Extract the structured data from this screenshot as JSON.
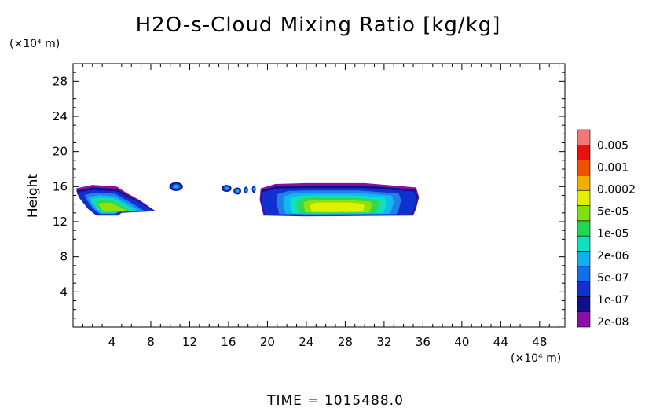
{
  "chart_data": {
    "type": "heatmap",
    "title": "H2O-s-Cloud Mixing Ratio [kg/kg]",
    "xlabel": "",
    "ylabel": "Height",
    "x_unit": "(×10⁴ m)",
    "y_unit": "(×10⁴ m)",
    "xlim": [
      0,
      50.6
    ],
    "ylim": [
      0,
      30
    ],
    "x_ticks": [
      4,
      8,
      12,
      16,
      20,
      24,
      28,
      32,
      36,
      40,
      44,
      48
    ],
    "y_ticks": [
      4,
      8,
      12,
      16,
      20,
      24,
      28
    ],
    "colorbar": {
      "labels": [
        "0.005",
        "0.001",
        "0.0002",
        "5e-05",
        "1e-05",
        "2e-06",
        "5e-07",
        "1e-07",
        "2e-08"
      ],
      "colors": [
        "#8a10a8",
        "#10108e",
        "#1030d0",
        "#1070e8",
        "#10b0f0",
        "#10e0c0",
        "#20d850",
        "#80e010",
        "#e0f000",
        "#f0b000",
        "#f05000",
        "#e81010",
        "#f07878"
      ]
    },
    "regions": [
      {
        "name": "cloud-region-1",
        "shape": [
          [
            0.3,
            15.8
          ],
          [
            2.0,
            16.2
          ],
          [
            4.5,
            16.0
          ],
          [
            5.5,
            15.3
          ],
          [
            6.8,
            14.5
          ],
          [
            8.5,
            13.2
          ],
          [
            5.0,
            13.0
          ],
          [
            4.6,
            12.7
          ],
          [
            2.4,
            12.7
          ],
          [
            1.5,
            13.5
          ],
          [
            0.6,
            15.0
          ]
        ],
        "colors_inner": [
          "#2080e8",
          "#10b8f0",
          "#10e0c0",
          "#30d850",
          "#90e010"
        ]
      },
      {
        "name": "cloud-region-2",
        "shape": [
          [
            19.3,
            15.8
          ],
          [
            20.8,
            16.3
          ],
          [
            24.0,
            16.4
          ],
          [
            30.0,
            16.4
          ],
          [
            35.3,
            15.9
          ],
          [
            35.6,
            14.8
          ],
          [
            35.3,
            13.5
          ],
          [
            35.0,
            12.7
          ],
          [
            24.0,
            12.6
          ],
          [
            19.6,
            12.7
          ],
          [
            19.2,
            14.5
          ]
        ],
        "colors_inner": [
          "#2080e8",
          "#10b8f0",
          "#10e0c0",
          "#30d850",
          "#90e010",
          "#e0f000"
        ]
      }
    ],
    "small_cells": [
      {
        "name": "cloud-fragment-1",
        "x": 10.6,
        "y": 16.0,
        "rx": 0.7,
        "ry": 0.5
      },
      {
        "name": "cloud-fragment-2",
        "x": 15.8,
        "y": 15.8,
        "rx": 0.5,
        "ry": 0.4
      },
      {
        "name": "cloud-fragment-3",
        "x": 16.9,
        "y": 15.5,
        "rx": 0.4,
        "ry": 0.4
      },
      {
        "name": "cloud-fragment-4",
        "x": 17.8,
        "y": 15.6,
        "rx": 0.2,
        "ry": 0.4
      },
      {
        "name": "cloud-fragment-5",
        "x": 18.6,
        "y": 15.7,
        "rx": 0.2,
        "ry": 0.4
      }
    ],
    "footer": "TIME = 1015488.0"
  }
}
